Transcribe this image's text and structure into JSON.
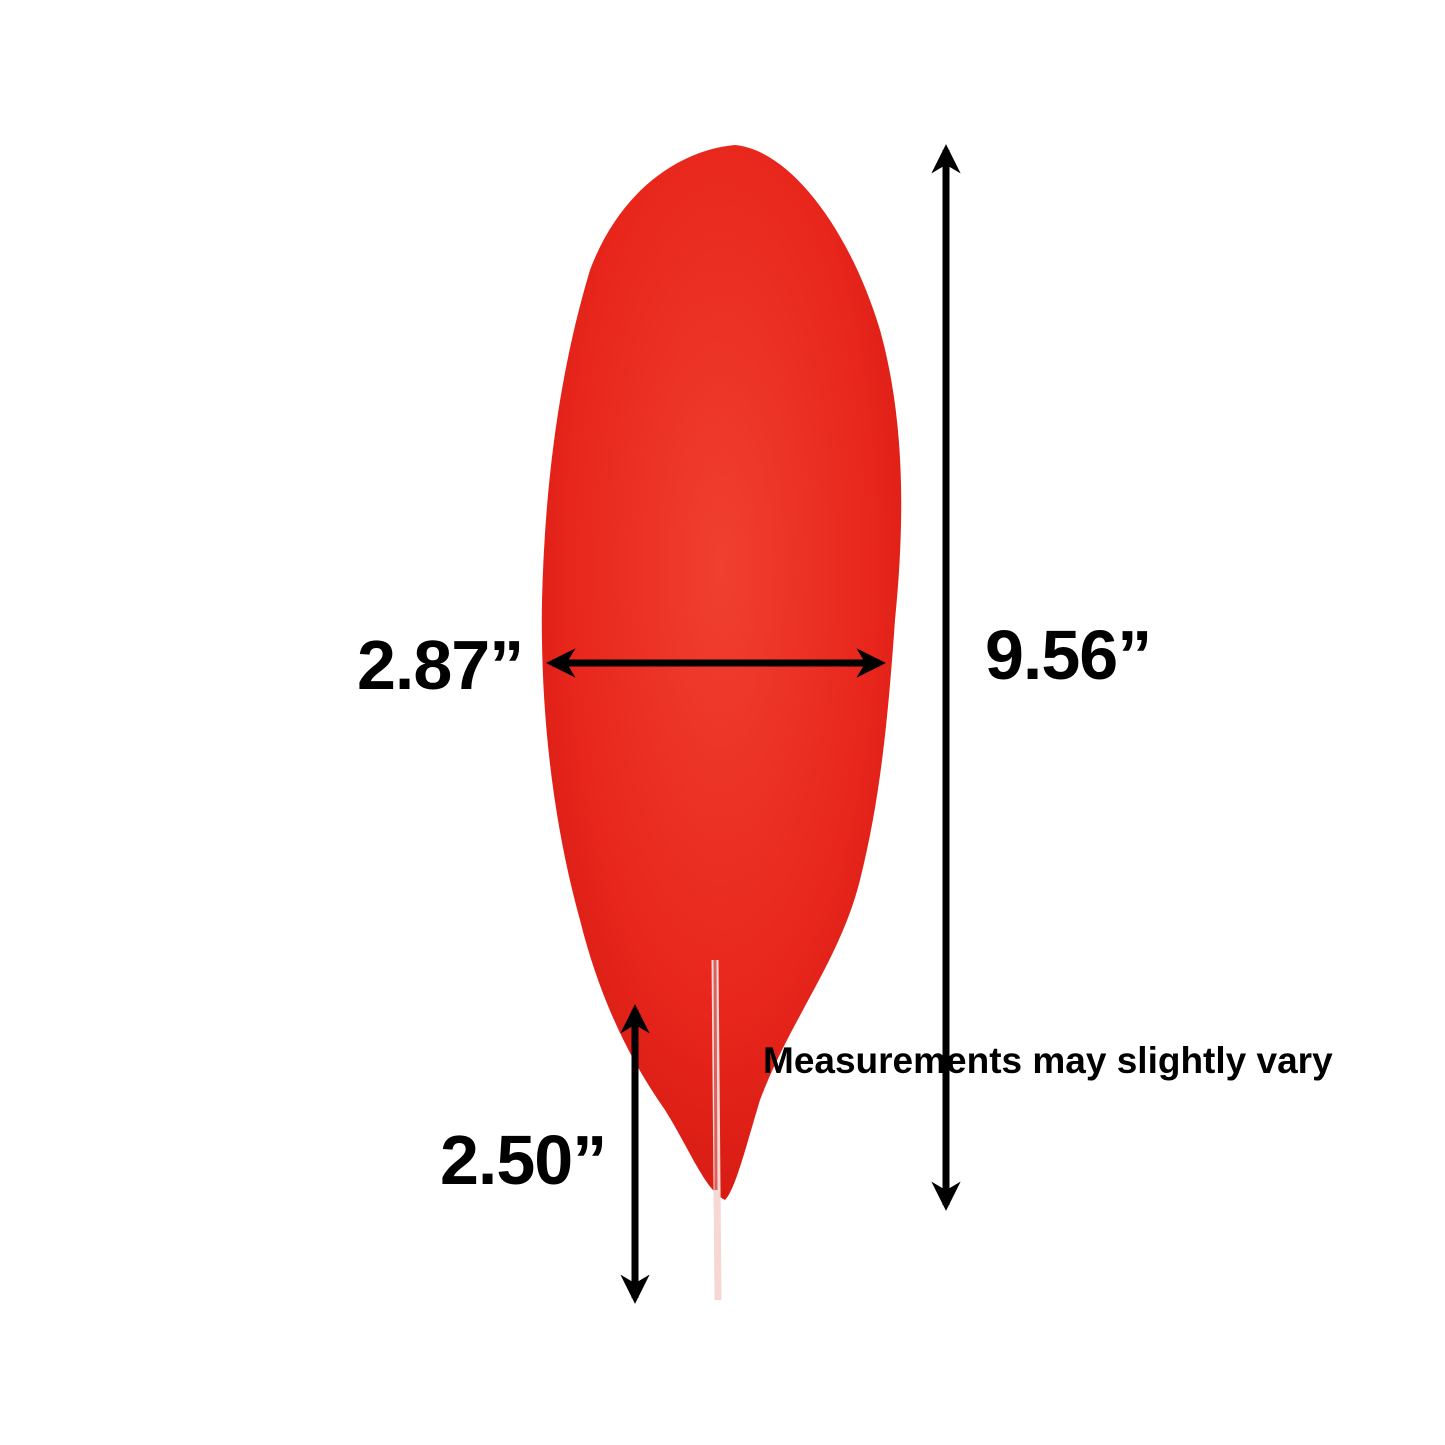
{
  "product": {
    "name": "red feather",
    "color": "#e8261c"
  },
  "dimensions": {
    "width": "2.87”",
    "length": "9.56”",
    "stem": "2.50”"
  },
  "note": "Measurements may slightly vary",
  "arrow_color": "#000000"
}
